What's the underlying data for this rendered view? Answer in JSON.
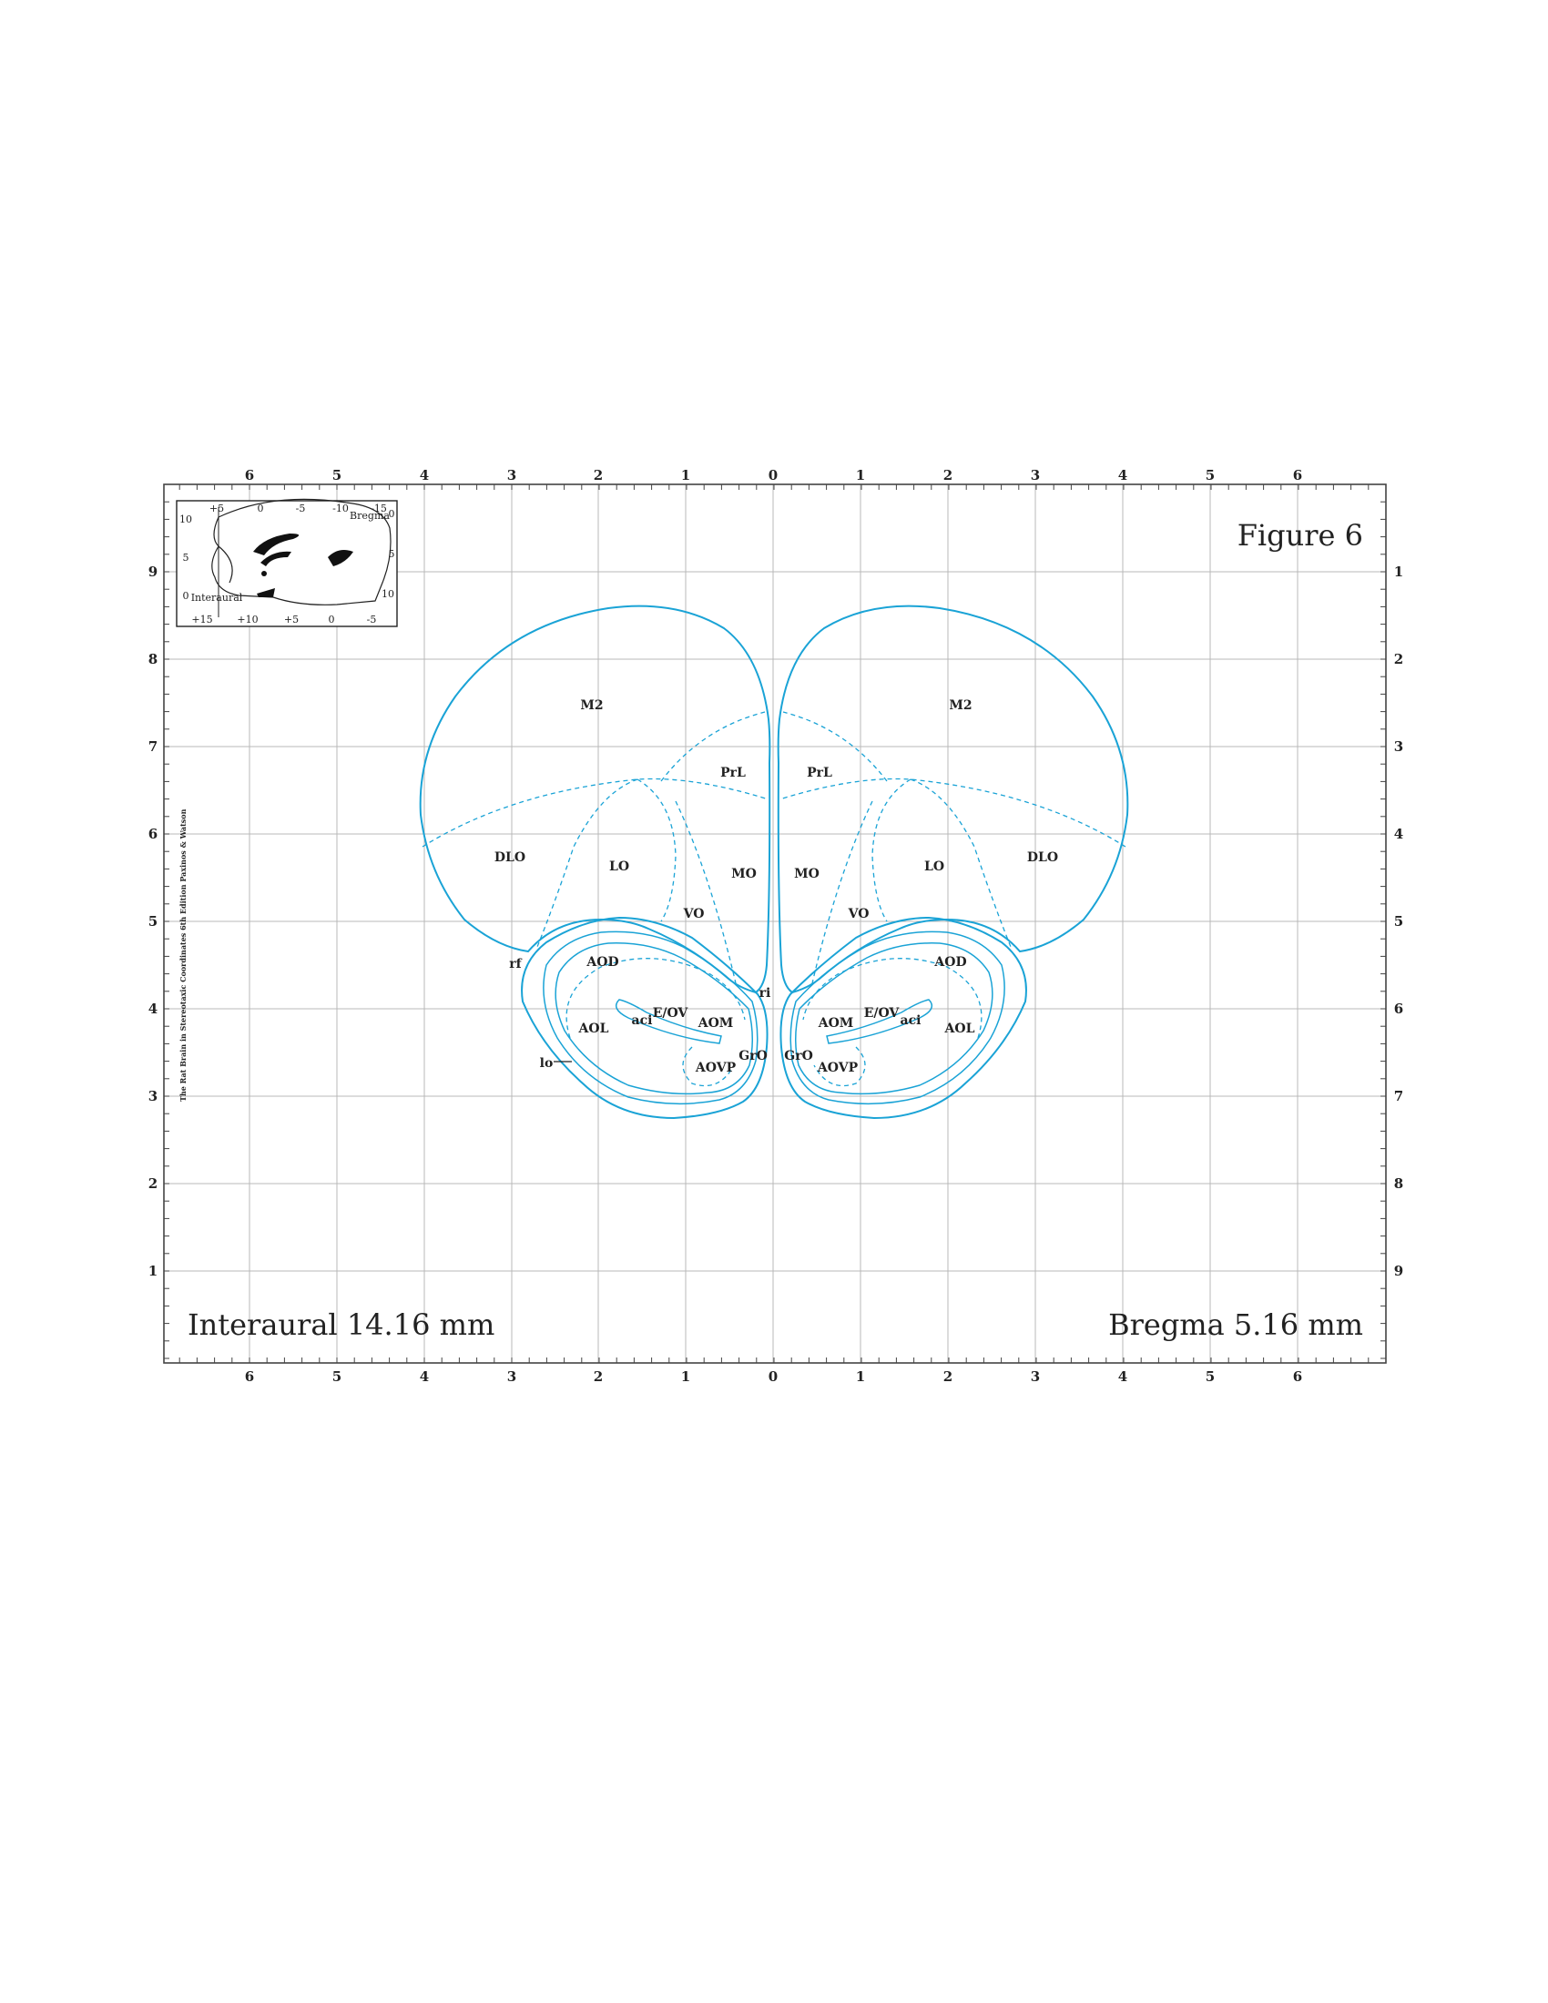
{
  "figure_label": "Figure 6",
  "interaural": "Interaural 14.16 mm",
  "bregma": "Bregma 5.16 mm",
  "credit": "The Rat Brain in Stereotaxic Coordinates  6th Edition  Paxinos & Watson",
  "axes": {
    "horizontal": [
      "6",
      "5",
      "4",
      "3",
      "2",
      "1",
      "0",
      "1",
      "2",
      "3",
      "4",
      "5",
      "6"
    ],
    "left_vertical": [
      "9",
      "8",
      "7",
      "6",
      "5",
      "4",
      "3",
      "2",
      "1"
    ],
    "right_vertical": [
      "1",
      "2",
      "3",
      "4",
      "5",
      "6",
      "7",
      "8",
      "9"
    ]
  },
  "inset": {
    "top_ticks": [
      "+5",
      "0",
      "-5",
      "-10",
      "-15"
    ],
    "bottom_ticks": [
      "+15",
      "+10",
      "+5",
      "0",
      "-5"
    ],
    "left_ticks": [
      "10",
      "5",
      "0"
    ],
    "right_ticks": [
      "0",
      "5",
      "10"
    ],
    "bregma": "Bregma",
    "interaural": "Interaural"
  },
  "regions": {
    "m2": "M2",
    "prl": "PrL",
    "dlo": "DLO",
    "lo": "LO",
    "mo": "MO",
    "vo": "VO",
    "aod": "AOD",
    "aol": "AOL",
    "aom": "AOM",
    "aovp": "AOVP",
    "eov": "E/OV",
    "aci": "aci",
    "gro": "GrO",
    "rf": "rf",
    "ri": "ri",
    "lo_tract": "lo"
  },
  "colors": {
    "brain_outline": "#1aa3d6",
    "grid": "#b8b8b8",
    "frame": "#444444"
  }
}
